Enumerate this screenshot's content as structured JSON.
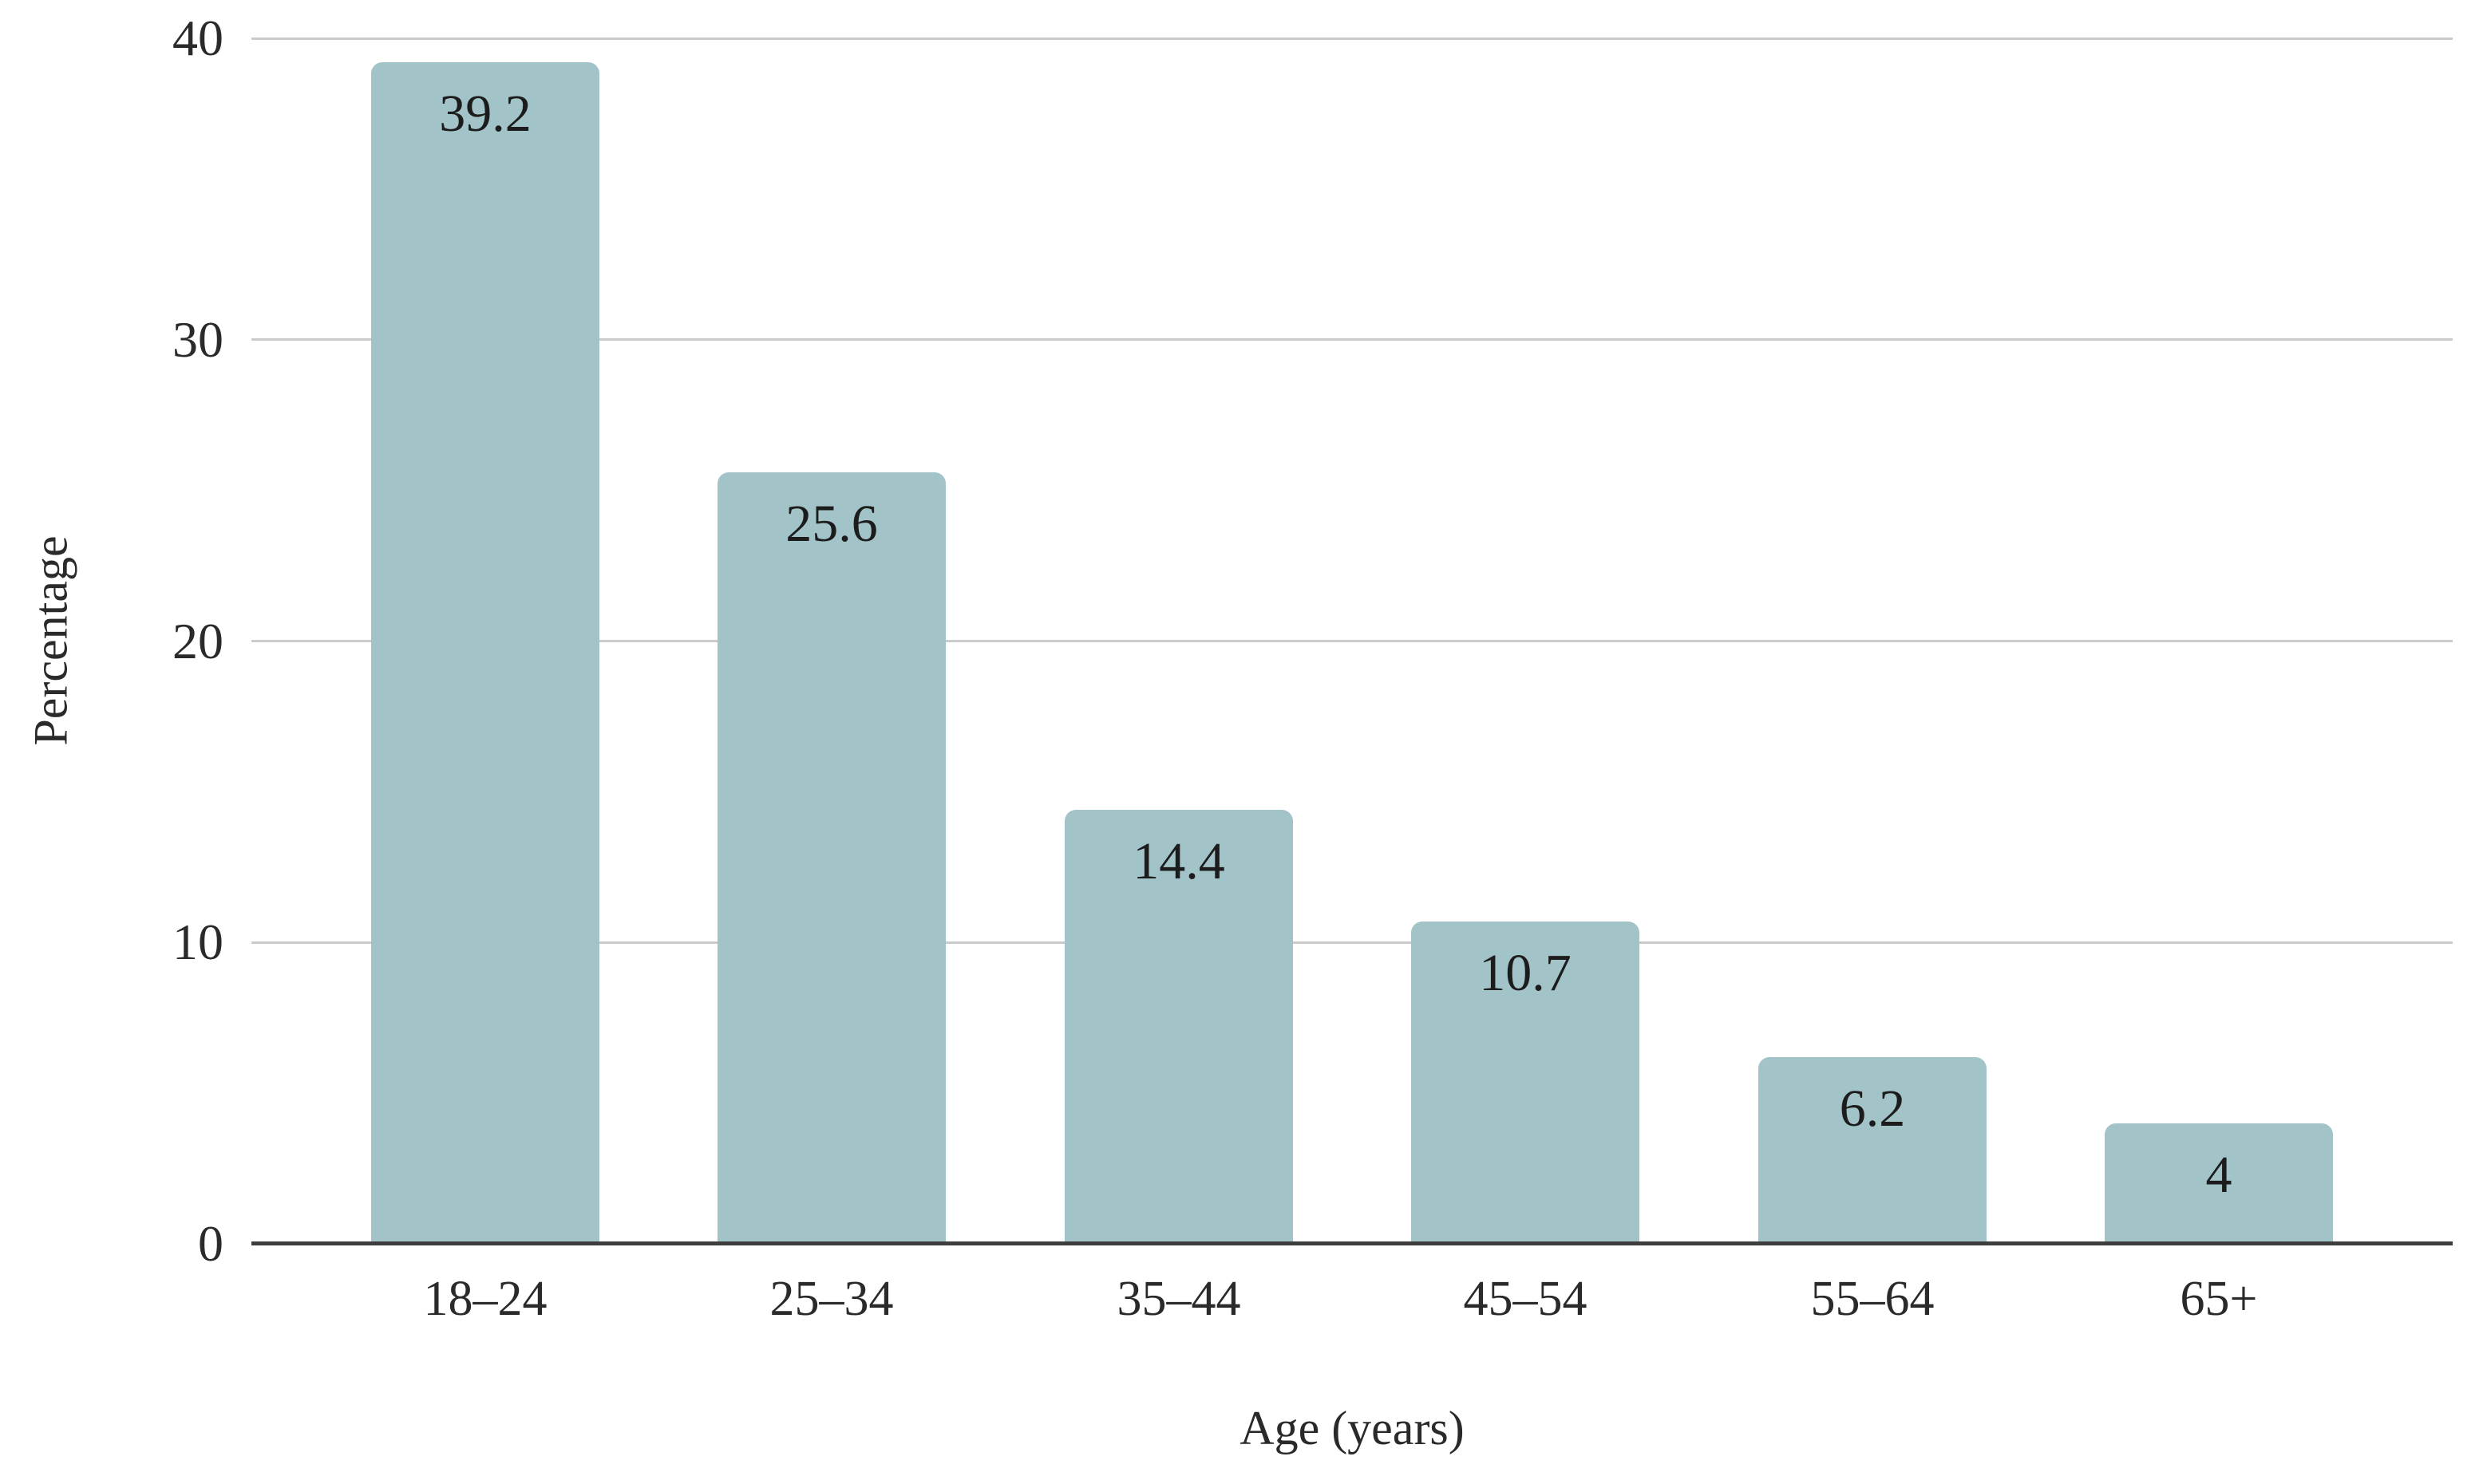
{
  "chart_data": {
    "type": "bar",
    "categories": [
      "18–24",
      "25–34",
      "35–44",
      "45–54",
      "55–64",
      "65+"
    ],
    "values": [
      39.2,
      25.6,
      14.4,
      10.7,
      6.2,
      4
    ],
    "data_labels": [
      "39.2",
      "25.6",
      "14.4",
      "10.7",
      "6.2",
      "4"
    ],
    "xlabel": "Age (years)",
    "ylabel": "Percentage",
    "ylim": [
      0,
      40
    ],
    "yticks": [
      0,
      10,
      20,
      30,
      40
    ],
    "grid": "horizontal",
    "legend": "none",
    "data_label_position": "inside-top",
    "colors": {
      "bar": "#a2c3c8",
      "axis": "#3d3d3d",
      "gridline": "#cbcbcb",
      "value_text": "#1c1c1c",
      "tick_text": "#2a2a2a",
      "background": "#ffffff"
    }
  }
}
